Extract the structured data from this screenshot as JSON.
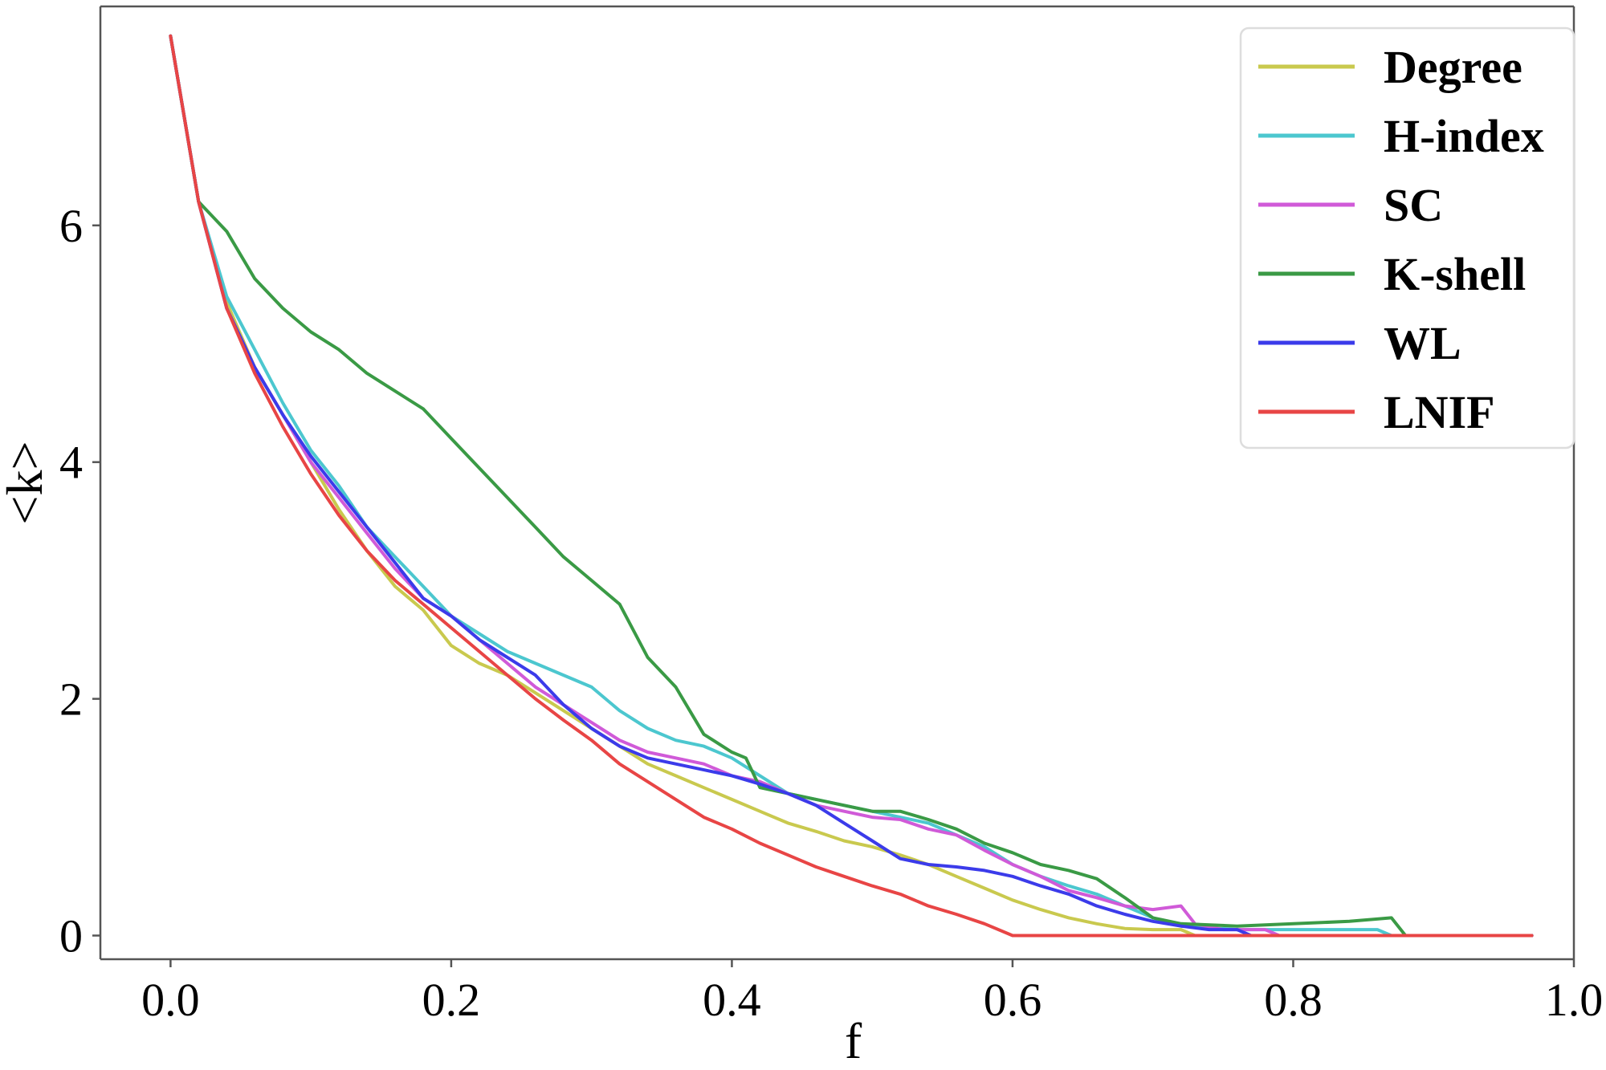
{
  "chart_data": {
    "type": "line",
    "title": "",
    "xlabel": "f",
    "ylabel": "<k>",
    "xlim": [
      -0.05,
      1.0
    ],
    "ylim": [
      -0.2,
      7.85
    ],
    "xticks": [
      0.0,
      0.2,
      0.4,
      0.6,
      0.8,
      1.0
    ],
    "xtick_labels": [
      "0.0",
      "0.2",
      "0.4",
      "0.6",
      "0.8",
      "1.0"
    ],
    "yticks": [
      0,
      2,
      4,
      6
    ],
    "ytick_labels": [
      "0",
      "2",
      "4",
      "6"
    ],
    "grid": false,
    "legend_position": "top-right",
    "series": [
      {
        "name": "Degree",
        "color": "#c9c94e",
        "points": [
          [
            0.0,
            7.6
          ],
          [
            0.02,
            6.2
          ],
          [
            0.04,
            5.35
          ],
          [
            0.06,
            4.8
          ],
          [
            0.08,
            4.4
          ],
          [
            0.1,
            4.0
          ],
          [
            0.12,
            3.6
          ],
          [
            0.14,
            3.25
          ],
          [
            0.16,
            2.95
          ],
          [
            0.18,
            2.75
          ],
          [
            0.2,
            2.45
          ],
          [
            0.22,
            2.3
          ],
          [
            0.24,
            2.2
          ],
          [
            0.26,
            2.05
          ],
          [
            0.28,
            1.9
          ],
          [
            0.3,
            1.75
          ],
          [
            0.32,
            1.6
          ],
          [
            0.34,
            1.45
          ],
          [
            0.36,
            1.35
          ],
          [
            0.38,
            1.25
          ],
          [
            0.4,
            1.15
          ],
          [
            0.42,
            1.05
          ],
          [
            0.44,
            0.95
          ],
          [
            0.46,
            0.88
          ],
          [
            0.48,
            0.8
          ],
          [
            0.5,
            0.75
          ],
          [
            0.52,
            0.68
          ],
          [
            0.54,
            0.6
          ],
          [
            0.56,
            0.5
          ],
          [
            0.58,
            0.4
          ],
          [
            0.6,
            0.3
          ],
          [
            0.62,
            0.22
          ],
          [
            0.64,
            0.15
          ],
          [
            0.66,
            0.1
          ],
          [
            0.68,
            0.06
          ],
          [
            0.7,
            0.05
          ],
          [
            0.72,
            0.05
          ],
          [
            0.73,
            0.0
          ],
          [
            0.8,
            0.0
          ],
          [
            0.9,
            0.0
          ],
          [
            0.97,
            0.0
          ]
        ]
      },
      {
        "name": "H-index",
        "color": "#4cc7cf",
        "points": [
          [
            0.0,
            7.6
          ],
          [
            0.02,
            6.2
          ],
          [
            0.04,
            5.4
          ],
          [
            0.06,
            4.95
          ],
          [
            0.08,
            4.5
          ],
          [
            0.1,
            4.1
          ],
          [
            0.12,
            3.8
          ],
          [
            0.14,
            3.45
          ],
          [
            0.16,
            3.2
          ],
          [
            0.18,
            2.95
          ],
          [
            0.2,
            2.7
          ],
          [
            0.22,
            2.55
          ],
          [
            0.24,
            2.4
          ],
          [
            0.26,
            2.3
          ],
          [
            0.28,
            2.2
          ],
          [
            0.3,
            2.1
          ],
          [
            0.32,
            1.9
          ],
          [
            0.34,
            1.75
          ],
          [
            0.36,
            1.65
          ],
          [
            0.38,
            1.6
          ],
          [
            0.4,
            1.5
          ],
          [
            0.42,
            1.35
          ],
          [
            0.44,
            1.2
          ],
          [
            0.46,
            1.15
          ],
          [
            0.48,
            1.1
          ],
          [
            0.5,
            1.05
          ],
          [
            0.52,
            1.0
          ],
          [
            0.54,
            0.95
          ],
          [
            0.56,
            0.85
          ],
          [
            0.58,
            0.75
          ],
          [
            0.6,
            0.6
          ],
          [
            0.62,
            0.5
          ],
          [
            0.64,
            0.42
          ],
          [
            0.66,
            0.35
          ],
          [
            0.68,
            0.25
          ],
          [
            0.7,
            0.15
          ],
          [
            0.72,
            0.08
          ],
          [
            0.76,
            0.05
          ],
          [
            0.8,
            0.05
          ],
          [
            0.84,
            0.05
          ],
          [
            0.86,
            0.05
          ],
          [
            0.87,
            0.0
          ],
          [
            0.97,
            0.0
          ]
        ]
      },
      {
        "name": "SC",
        "color": "#d05ad8",
        "points": [
          [
            0.0,
            7.6
          ],
          [
            0.02,
            6.2
          ],
          [
            0.04,
            5.3
          ],
          [
            0.06,
            4.8
          ],
          [
            0.08,
            4.4
          ],
          [
            0.1,
            4.0
          ],
          [
            0.12,
            3.7
          ],
          [
            0.14,
            3.4
          ],
          [
            0.16,
            3.1
          ],
          [
            0.18,
            2.85
          ],
          [
            0.2,
            2.7
          ],
          [
            0.22,
            2.5
          ],
          [
            0.24,
            2.3
          ],
          [
            0.26,
            2.1
          ],
          [
            0.28,
            1.95
          ],
          [
            0.3,
            1.8
          ],
          [
            0.32,
            1.65
          ],
          [
            0.34,
            1.55
          ],
          [
            0.36,
            1.5
          ],
          [
            0.38,
            1.45
          ],
          [
            0.4,
            1.35
          ],
          [
            0.42,
            1.3
          ],
          [
            0.44,
            1.2
          ],
          [
            0.46,
            1.1
          ],
          [
            0.48,
            1.05
          ],
          [
            0.5,
            1.0
          ],
          [
            0.52,
            0.98
          ],
          [
            0.54,
            0.9
          ],
          [
            0.56,
            0.85
          ],
          [
            0.58,
            0.72
          ],
          [
            0.6,
            0.6
          ],
          [
            0.62,
            0.5
          ],
          [
            0.64,
            0.38
          ],
          [
            0.66,
            0.32
          ],
          [
            0.68,
            0.25
          ],
          [
            0.7,
            0.22
          ],
          [
            0.72,
            0.25
          ],
          [
            0.73,
            0.1
          ],
          [
            0.75,
            0.05
          ],
          [
            0.78,
            0.05
          ],
          [
            0.79,
            0.0
          ],
          [
            0.97,
            0.0
          ]
        ]
      },
      {
        "name": "K-shell",
        "color": "#3a9a45",
        "points": [
          [
            0.0,
            7.6
          ],
          [
            0.02,
            6.2
          ],
          [
            0.04,
            5.95
          ],
          [
            0.06,
            5.55
          ],
          [
            0.08,
            5.3
          ],
          [
            0.1,
            5.1
          ],
          [
            0.12,
            4.95
          ],
          [
            0.14,
            4.75
          ],
          [
            0.16,
            4.6
          ],
          [
            0.18,
            4.45
          ],
          [
            0.2,
            4.2
          ],
          [
            0.22,
            3.95
          ],
          [
            0.24,
            3.7
          ],
          [
            0.26,
            3.45
          ],
          [
            0.28,
            3.2
          ],
          [
            0.3,
            3.0
          ],
          [
            0.32,
            2.8
          ],
          [
            0.34,
            2.35
          ],
          [
            0.36,
            2.1
          ],
          [
            0.38,
            1.7
          ],
          [
            0.4,
            1.55
          ],
          [
            0.41,
            1.5
          ],
          [
            0.42,
            1.25
          ],
          [
            0.44,
            1.2
          ],
          [
            0.46,
            1.15
          ],
          [
            0.48,
            1.1
          ],
          [
            0.5,
            1.05
          ],
          [
            0.52,
            1.05
          ],
          [
            0.54,
            0.98
          ],
          [
            0.56,
            0.9
          ],
          [
            0.58,
            0.78
          ],
          [
            0.6,
            0.7
          ],
          [
            0.62,
            0.6
          ],
          [
            0.64,
            0.55
          ],
          [
            0.66,
            0.48
          ],
          [
            0.68,
            0.32
          ],
          [
            0.7,
            0.15
          ],
          [
            0.72,
            0.1
          ],
          [
            0.76,
            0.08
          ],
          [
            0.8,
            0.1
          ],
          [
            0.84,
            0.12
          ],
          [
            0.87,
            0.15
          ],
          [
            0.88,
            0.0
          ],
          [
            0.97,
            0.0
          ]
        ]
      },
      {
        "name": "WL",
        "color": "#3b3bea",
        "points": [
          [
            0.0,
            7.6
          ],
          [
            0.02,
            6.2
          ],
          [
            0.04,
            5.3
          ],
          [
            0.06,
            4.8
          ],
          [
            0.08,
            4.4
          ],
          [
            0.1,
            4.05
          ],
          [
            0.12,
            3.75
          ],
          [
            0.14,
            3.45
          ],
          [
            0.16,
            3.15
          ],
          [
            0.18,
            2.85
          ],
          [
            0.2,
            2.7
          ],
          [
            0.22,
            2.5
          ],
          [
            0.24,
            2.35
          ],
          [
            0.26,
            2.2
          ],
          [
            0.28,
            1.95
          ],
          [
            0.3,
            1.75
          ],
          [
            0.32,
            1.6
          ],
          [
            0.34,
            1.5
          ],
          [
            0.36,
            1.45
          ],
          [
            0.38,
            1.4
          ],
          [
            0.4,
            1.35
          ],
          [
            0.42,
            1.28
          ],
          [
            0.44,
            1.2
          ],
          [
            0.46,
            1.1
          ],
          [
            0.48,
            0.95
          ],
          [
            0.5,
            0.8
          ],
          [
            0.52,
            0.65
          ],
          [
            0.54,
            0.6
          ],
          [
            0.56,
            0.58
          ],
          [
            0.58,
            0.55
          ],
          [
            0.6,
            0.5
          ],
          [
            0.62,
            0.42
          ],
          [
            0.64,
            0.35
          ],
          [
            0.66,
            0.25
          ],
          [
            0.68,
            0.18
          ],
          [
            0.7,
            0.12
          ],
          [
            0.72,
            0.08
          ],
          [
            0.74,
            0.05
          ],
          [
            0.76,
            0.05
          ],
          [
            0.77,
            0.0
          ],
          [
            0.97,
            0.0
          ]
        ]
      },
      {
        "name": "LNIF",
        "color": "#e84545",
        "points": [
          [
            0.0,
            7.6
          ],
          [
            0.02,
            6.2
          ],
          [
            0.04,
            5.3
          ],
          [
            0.06,
            4.75
          ],
          [
            0.08,
            4.3
          ],
          [
            0.1,
            3.9
          ],
          [
            0.12,
            3.55
          ],
          [
            0.14,
            3.25
          ],
          [
            0.16,
            3.0
          ],
          [
            0.18,
            2.8
          ],
          [
            0.2,
            2.6
          ],
          [
            0.22,
            2.4
          ],
          [
            0.24,
            2.2
          ],
          [
            0.26,
            2.0
          ],
          [
            0.28,
            1.82
          ],
          [
            0.3,
            1.65
          ],
          [
            0.32,
            1.45
          ],
          [
            0.34,
            1.3
          ],
          [
            0.36,
            1.15
          ],
          [
            0.38,
            1.0
          ],
          [
            0.4,
            0.9
          ],
          [
            0.42,
            0.78
          ],
          [
            0.44,
            0.68
          ],
          [
            0.46,
            0.58
          ],
          [
            0.48,
            0.5
          ],
          [
            0.5,
            0.42
          ],
          [
            0.52,
            0.35
          ],
          [
            0.54,
            0.25
          ],
          [
            0.56,
            0.18
          ],
          [
            0.58,
            0.1
          ],
          [
            0.6,
            0.0
          ],
          [
            0.7,
            0.0
          ],
          [
            0.8,
            0.0
          ],
          [
            0.9,
            0.0
          ],
          [
            0.97,
            0.0
          ]
        ]
      }
    ]
  }
}
